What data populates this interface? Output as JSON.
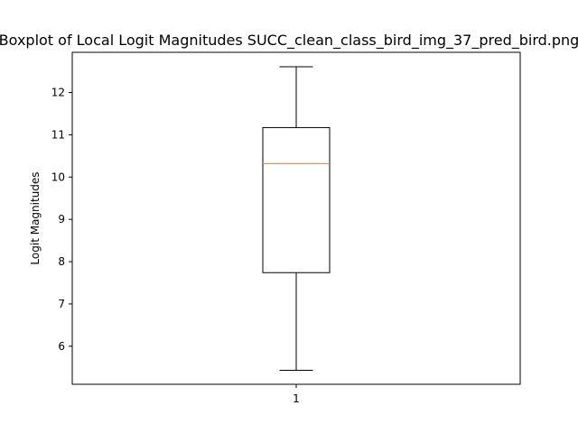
{
  "chart_data": {
    "type": "box",
    "title": "Boxplot of Local Logit Magnitudes SUCC_clean_class_bird_img_37_pred_bird.png",
    "xlabel": "",
    "ylabel": "Logit Magnitudes",
    "categories": [
      "1"
    ],
    "ylim": [
      5.1,
      12.95
    ],
    "yticks": [
      "6",
      "7",
      "8",
      "9",
      "10",
      "11",
      "12"
    ],
    "boxes": [
      {
        "category": "1",
        "whisker_low": 5.43,
        "q1": 7.74,
        "median": 10.32,
        "q3": 11.17,
        "whisker_high": 12.61
      }
    ],
    "grid": false,
    "colors": {
      "box": "#000000",
      "median": "#ff7f0e",
      "axes": "#000000"
    }
  }
}
